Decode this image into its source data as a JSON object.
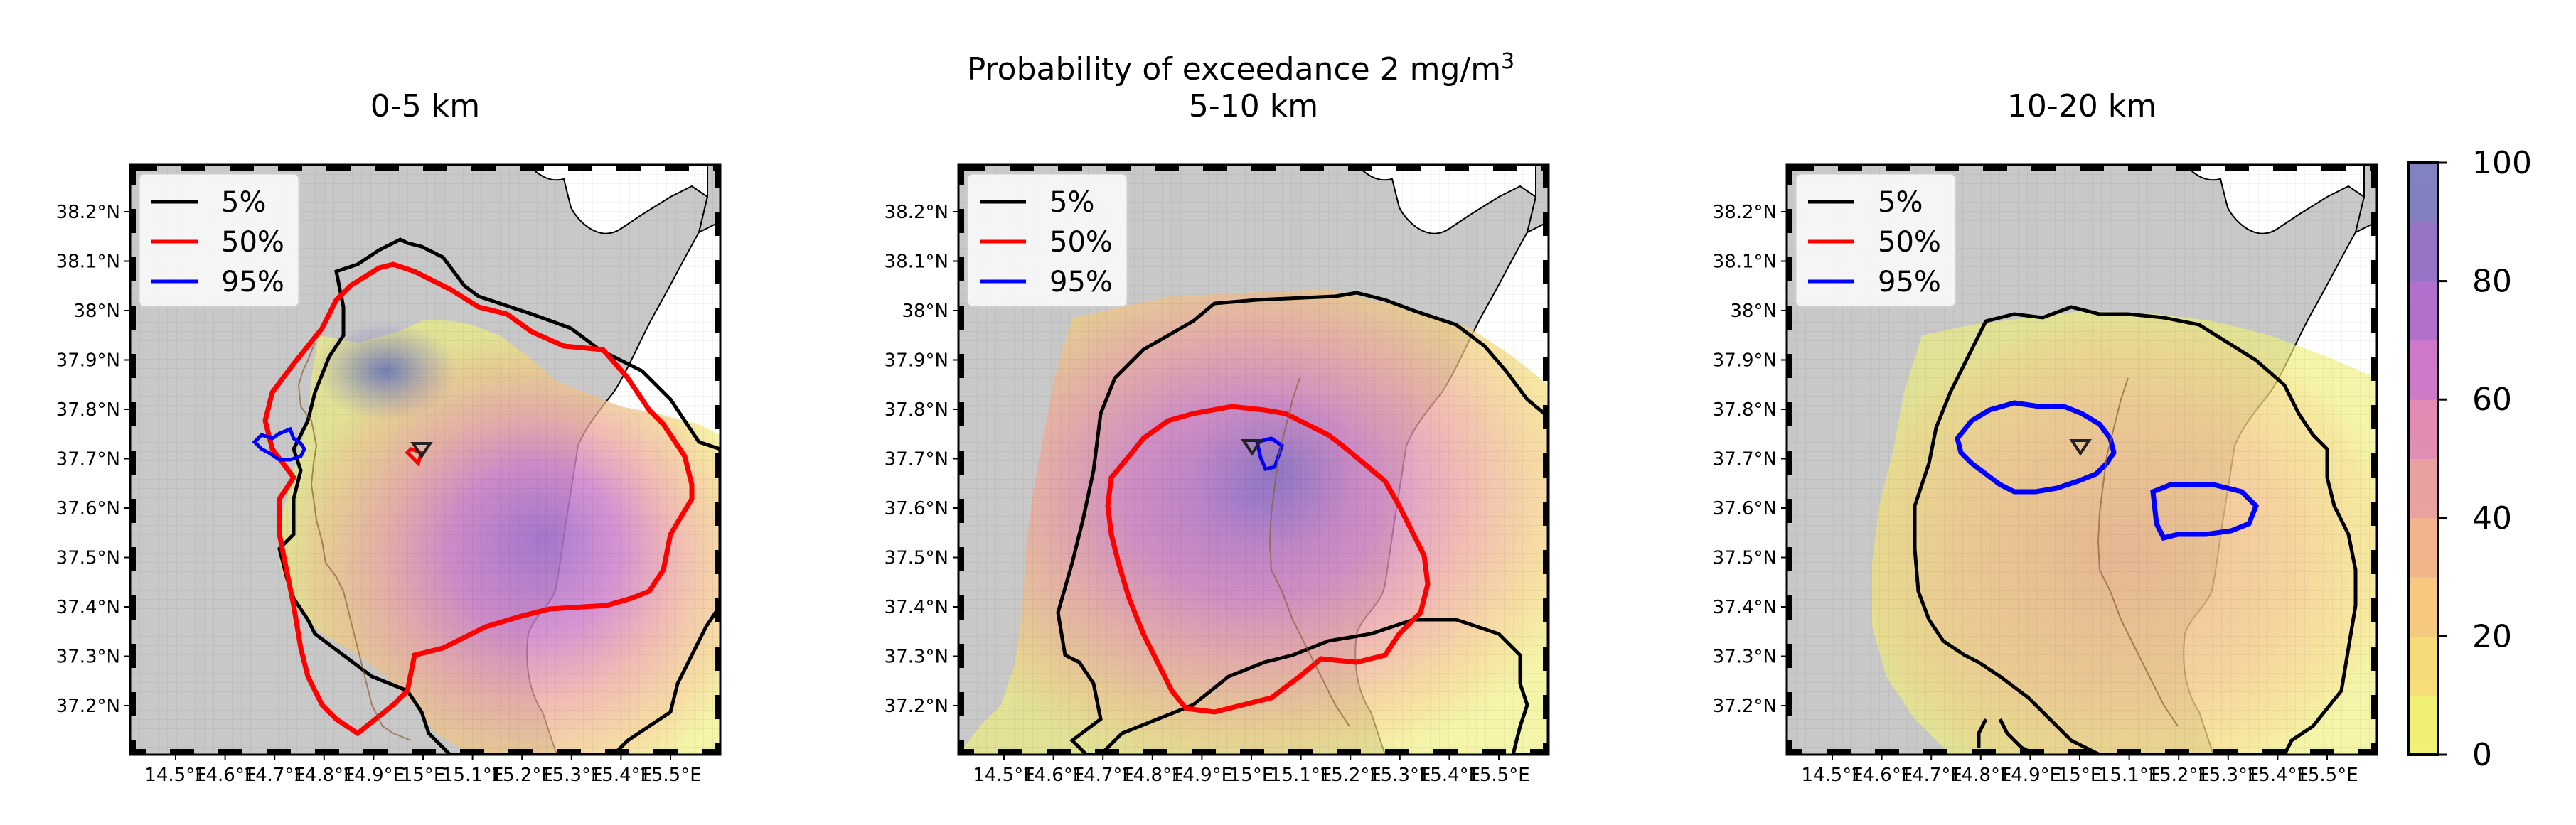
{
  "figure": {
    "suptitle_main": "Probability of exceedance 2 mg/m",
    "suptitle_sup": "3",
    "colorbar": {
      "ticks": [
        "0",
        "20",
        "40",
        "60",
        "80",
        "100"
      ],
      "range": [
        0,
        100
      ],
      "colors": [
        "#f0f075",
        "#f5dc78",
        "#f5c880",
        "#f0b48c",
        "#eaa0a0",
        "#e28cb4",
        "#d078c8",
        "#b070cc",
        "#9674c6",
        "#8282c0"
      ]
    }
  },
  "legend": [
    {
      "label": "5%",
      "color": "#000000"
    },
    {
      "label": "50%",
      "color": "#ff0000"
    },
    {
      "label": "95%",
      "color": "#0000ff"
    }
  ],
  "axes": {
    "lat_ticks": [
      "38.2°N",
      "38.1°N",
      "38°N",
      "37.9°N",
      "37.8°N",
      "37.7°N",
      "37.6°N",
      "37.5°N",
      "37.4°N",
      "37.3°N",
      "37.2°N"
    ],
    "lon_ticks": [
      "14.5°E",
      "14.6°E",
      "14.7°E",
      "14.8°E",
      "14.9°E",
      "15°E",
      "15.1°E",
      "15.2°E",
      "15.3°E",
      "15.4°E",
      "15.5°E"
    ]
  },
  "panels": [
    {
      "title": "0-5 km",
      "vent_marker": "triangle-icon",
      "max_probability_percent": 95
    },
    {
      "title": "5-10 km",
      "vent_marker": "triangle-icon",
      "max_probability_percent": 95
    },
    {
      "title": "10-20 km",
      "vent_marker": "triangle-icon",
      "max_probability_percent": 30
    }
  ]
}
